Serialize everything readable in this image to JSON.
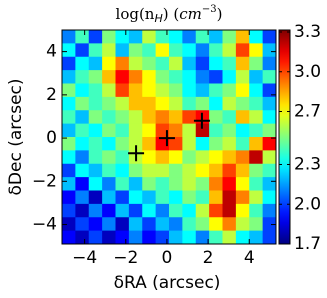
{
  "chart_data": {
    "type": "heatmap",
    "title": {
      "main": "log(n",
      "sub": "H",
      "mid": ") (",
      "unit": "cm",
      "sup": "−3",
      "end": ")"
    },
    "xlabel": "δRA (arcsec)",
    "ylabel": "δDec (arcsec)",
    "xlim": [
      -5.1,
      5.3
    ],
    "ylim": [
      -4.9,
      5.0
    ],
    "xticks": [
      {
        "value": -4,
        "label": "−4"
      },
      {
        "value": -2,
        "label": "−2"
      },
      0,
      2,
      4
    ],
    "yticks": [
      4,
      2,
      0,
      {
        "value": -2,
        "label": "−2"
      },
      {
        "value": -4,
        "label": "−4"
      }
    ],
    "colormap": "jet",
    "clim": [
      1.7,
      3.3
    ],
    "cticks": [
      {
        "value": 3.3,
        "label": "3.3"
      },
      {
        "value": 3,
        "label": "3.0"
      },
      2.7,
      2.3,
      {
        "value": 2,
        "label": "2.0"
      },
      1.7
    ],
    "z": [
      [
        2.1,
        2.4,
        2.0,
        2.5,
        2.3,
        2.2,
        2.6,
        2.4,
        2.3,
        2.1,
        2.4,
        2.2,
        2.5,
        2.8,
        2.3,
        2.0
      ],
      [
        2.3,
        2.0,
        2.4,
        2.6,
        2.2,
        2.5,
        2.4,
        2.7,
        2.4,
        2.3,
        2.1,
        2.4,
        2.6,
        3.0,
        2.7,
        2.2
      ],
      [
        2.0,
        2.3,
        2.2,
        2.7,
        2.9,
        2.6,
        2.5,
        2.4,
        2.6,
        2.2,
        2.0,
        2.3,
        2.4,
        2.8,
        2.5,
        2.1
      ],
      [
        2.2,
        2.4,
        2.5,
        2.8,
        3.1,
        2.9,
        2.7,
        2.5,
        2.4,
        2.3,
        2.1,
        2.0,
        2.3,
        2.6,
        2.2,
        2.4
      ],
      [
        2.5,
        2.3,
        2.4,
        2.6,
        3.0,
        2.8,
        2.7,
        2.6,
        2.5,
        2.3,
        2.2,
        2.4,
        2.5,
        2.7,
        2.3,
        2.0
      ],
      [
        2.3,
        2.5,
        2.4,
        2.5,
        2.6,
        2.8,
        2.8,
        2.7,
        2.6,
        2.4,
        2.5,
        2.3,
        2.6,
        2.5,
        2.4,
        2.2
      ],
      [
        2.4,
        2.2,
        2.5,
        2.4,
        2.5,
        2.6,
        2.8,
        2.9,
        2.8,
        3.0,
        3.1,
        2.5,
        2.4,
        2.8,
        2.6,
        2.3
      ],
      [
        2.2,
        2.4,
        2.3,
        2.5,
        2.4,
        2.6,
        2.7,
        3.0,
        2.9,
        2.6,
        3.2,
        2.4,
        2.5,
        2.3,
        2.4,
        2.5
      ],
      [
        2.5,
        2.3,
        2.4,
        2.3,
        2.5,
        2.6,
        2.8,
        3.1,
        3.0,
        2.6,
        2.3,
        2.5,
        2.6,
        2.4,
        2.8,
        3.1
      ],
      [
        2.3,
        2.1,
        2.4,
        2.5,
        2.4,
        2.6,
        2.7,
        2.8,
        2.7,
        2.5,
        2.6,
        2.7,
        2.8,
        2.9,
        3.2,
        2.6
      ],
      [
        2.0,
        2.3,
        2.2,
        2.4,
        2.3,
        2.5,
        2.6,
        2.6,
        2.5,
        2.6,
        2.7,
        2.8,
        3.0,
        2.8,
        2.5,
        2.4
      ],
      [
        2.2,
        1.9,
        2.3,
        2.1,
        2.4,
        2.2,
        2.5,
        2.4,
        2.5,
        2.6,
        2.5,
        2.9,
        3.1,
        2.7,
        2.4,
        2.2
      ],
      [
        1.9,
        2.1,
        1.8,
        2.2,
        2.0,
        2.3,
        2.2,
        2.4,
        2.3,
        2.5,
        2.4,
        2.8,
        3.2,
        2.9,
        2.6,
        2.3
      ],
      [
        2.0,
        1.8,
        2.1,
        1.9,
        2.2,
        2.0,
        2.3,
        2.1,
        2.4,
        2.3,
        2.6,
        3.0,
        3.2,
        2.7,
        2.4,
        2.1
      ],
      [
        1.8,
        2.0,
        1.9,
        2.1,
        1.8,
        2.2,
        2.0,
        2.2,
        2.1,
        2.4,
        2.5,
        2.7,
        2.9,
        2.6,
        2.5,
        2.0
      ],
      [
        1.9,
        1.8,
        2.0,
        1.8,
        1.9,
        2.1,
        1.9,
        2.0,
        2.2,
        2.3,
        2.1,
        2.4,
        2.6,
        2.3,
        2.2,
        2.0
      ]
    ],
    "markers": {
      "x": [
        -1.5,
        0,
        1.7
      ],
      "y": [
        -0.7,
        0,
        0.8
      ],
      "color": "#000000"
    }
  }
}
